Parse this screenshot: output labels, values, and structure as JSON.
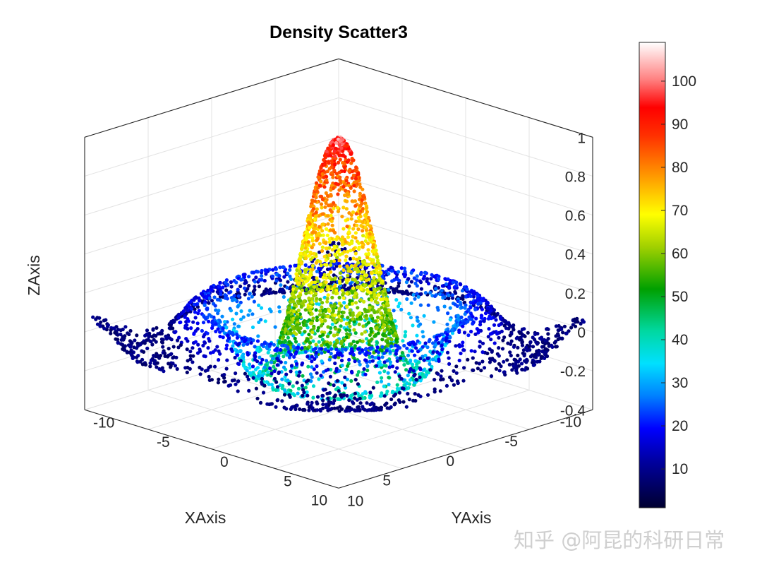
{
  "chart_data": {
    "type": "scatter",
    "subtype": "3d-density-scatter",
    "title": "Density Scatter3",
    "xlabel": "XAxis",
    "ylabel": "YAxis",
    "zlabel": "ZAxis",
    "xlim": [
      -10,
      10
    ],
    "ylim": [
      -10,
      10
    ],
    "zlim": [
      -0.4,
      1
    ],
    "x_ticks": [
      "-10",
      "-5",
      "0",
      "5",
      "10"
    ],
    "y_ticks": [
      "-10",
      "-5",
      "0",
      "5",
      "10"
    ],
    "z_ticks": [
      "-0.4",
      "-0.2",
      "0",
      "0.2",
      "0.4",
      "0.6",
      "0.8",
      "1"
    ],
    "surface": "z = sin(r)/r, r = sqrt(x^2 + y^2)",
    "colorbar": {
      "label_values": [
        10,
        20,
        30,
        40,
        50,
        60,
        70,
        80,
        90,
        100
      ],
      "range": [
        1,
        109
      ],
      "colormap": "jet-like with white top"
    },
    "grid": true
  },
  "watermark": "知乎 @阿昆的科研日常"
}
